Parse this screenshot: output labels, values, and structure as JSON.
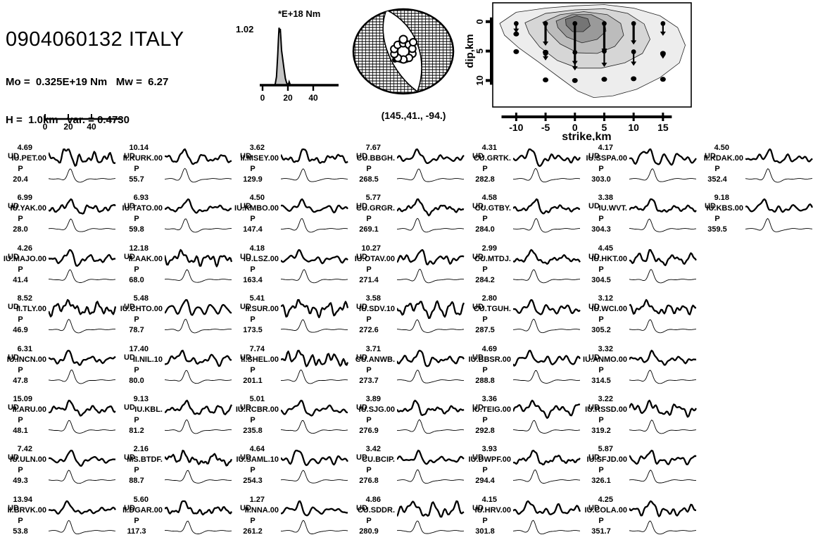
{
  "header": {
    "title": "0904060132 ITALY",
    "moment_line": "Mo =  0.325E+19 Nm   Mw =  6.27",
    "depth_line": "H =  1.0km   var. = 0.4730"
  },
  "colors": {
    "ink": "#000000",
    "stf_fill": "#c4c4c4",
    "contour_shades": [
      "#ededed",
      "#d6d6d6",
      "#bcbcbc",
      "#9a9a9a",
      "#757575"
    ]
  },
  "chart_data": {
    "type": "seismic-moment-tensor-inversion-figure",
    "source_time_function": {
      "type": "area",
      "unit_label": "*E+18 Nm",
      "peak_label": "1.02",
      "peak_value": 1.02,
      "x_ticks": [
        0,
        20,
        40
      ],
      "t": [
        0,
        9,
        10,
        11,
        12,
        12.5,
        13,
        13.5,
        14,
        14.5,
        15,
        16,
        17,
        18,
        19,
        20,
        20.5,
        21,
        21.5,
        22,
        50
      ],
      "moment_rate": [
        0,
        0,
        0.02,
        0.15,
        0.55,
        0.8,
        1.02,
        0.97,
        1.0,
        0.82,
        0.62,
        0.45,
        0.28,
        0.12,
        0.04,
        0.01,
        0.02,
        0.06,
        0.03,
        0,
        0
      ]
    },
    "focal_mechanism": {
      "label": "(145.,41., -94.)",
      "strike": 145,
      "dip": 41,
      "rake": -94
    },
    "slip_distribution": {
      "xlabel": "strike,km",
      "ylabel": "dip,km",
      "x_ticks": [
        -10,
        -5,
        0,
        5,
        10,
        15
      ],
      "y_ticks": [
        0,
        5,
        10
      ],
      "contours": [
        [
          [
            -12.8,
            0.3
          ],
          [
            -10,
            -1.6
          ],
          [
            -5,
            -2.3
          ],
          [
            0,
            -2.7
          ],
          [
            5,
            -2.9
          ],
          [
            10,
            -2.3
          ],
          [
            14.5,
            -1
          ],
          [
            17.5,
            1
          ],
          [
            18.8,
            4
          ],
          [
            17.8,
            7
          ],
          [
            14.5,
            9.5
          ],
          [
            10.5,
            11.5
          ],
          [
            6.5,
            12.6
          ],
          [
            3.2,
            12.9
          ],
          [
            0.5,
            11.8
          ],
          [
            -2.5,
            9.6
          ],
          [
            -6,
            7
          ],
          [
            -9.5,
            4.5
          ],
          [
            -12,
            2.3
          ]
        ],
        [
          [
            -8.5,
            0.2
          ],
          [
            -5,
            -1.4
          ],
          [
            0,
            -2
          ],
          [
            5,
            -2.2
          ],
          [
            9,
            -1.4
          ],
          [
            11.8,
            0.4
          ],
          [
            12.8,
            3
          ],
          [
            11.5,
            5.4
          ],
          [
            8.5,
            7
          ],
          [
            4.5,
            7.9
          ],
          [
            0.5,
            7.9
          ],
          [
            -3,
            6.6
          ],
          [
            -6,
            4.3
          ],
          [
            -7.8,
            2
          ]
        ],
        [
          [
            -5.5,
            0.1
          ],
          [
            -2.5,
            -1.2
          ],
          [
            1.5,
            -1.7
          ],
          [
            5.5,
            -1.2
          ],
          [
            7.8,
            0.3
          ],
          [
            8.3,
            2.3
          ],
          [
            6.8,
            4.2
          ],
          [
            3.8,
            5.4
          ],
          [
            0.5,
            5.3
          ],
          [
            -2.5,
            3.8
          ],
          [
            -4.5,
            1.8
          ]
        ],
        [
          [
            -3.2,
            -0.1
          ],
          [
            -0.5,
            -1.2
          ],
          [
            2.8,
            -1.2
          ],
          [
            5,
            -0.1
          ],
          [
            5.3,
            1.6
          ],
          [
            3.8,
            3
          ],
          [
            1.2,
            3.6
          ],
          [
            -1.4,
            2.6
          ],
          [
            -2.9,
            1
          ]
        ],
        [
          [
            -1.6,
            -0.4
          ],
          [
            0.3,
            -1
          ],
          [
            2.2,
            -0.5
          ],
          [
            2.6,
            0.7
          ],
          [
            1.4,
            1.7
          ],
          [
            -0.4,
            1.7
          ],
          [
            -1.5,
            0.6
          ]
        ]
      ],
      "arrows": [
        [
          -10,
          0.2,
          1.9
        ],
        [
          -5,
          0.2,
          4.1
        ],
        [
          0,
          0.2,
          7.4
        ],
        [
          5,
          0.2,
          5.3
        ],
        [
          10,
          0.2,
          3.9
        ],
        [
          15,
          0.2,
          2.4
        ],
        [
          -5,
          5.3,
          6.6
        ],
        [
          0,
          5.1,
          8.3
        ],
        [
          5,
          4.9,
          7.7
        ],
        [
          10,
          5.0,
          7.5
        ],
        [
          15,
          5.3,
          6.3
        ]
      ],
      "dots": [
        [
          -10,
          2.1
        ],
        [
          -10,
          5.1
        ],
        [
          -5,
          5.2
        ],
        [
          -5,
          9.9
        ],
        [
          0,
          10
        ],
        [
          5,
          9.8
        ],
        [
          10,
          9.7
        ],
        [
          15,
          5.4
        ],
        [
          15,
          9.8
        ]
      ]
    },
    "waveform_time_scale": {
      "ticks": [
        0,
        20,
        40
      ]
    },
    "stations": {
      "component_label": "UD",
      "phase_label": "P",
      "columns": [
        [
          {
            "amp": "4.69",
            "name": "IU.PET.00",
            "az": "20.4"
          },
          {
            "amp": "6.99",
            "name": "IU.YAK.00",
            "az": "28.0"
          },
          {
            "amp": "4.26",
            "name": "IU.MAJO.00",
            "az": "41.4"
          },
          {
            "amp": "8.52",
            "name": "II.TLY.00",
            "az": "46.9"
          },
          {
            "amp": "6.31",
            "name": "IU.INCN.00",
            "az": "47.8"
          },
          {
            "amp": "15.09",
            "name": "II.ARU.00",
            "az": "48.1"
          },
          {
            "amp": "7.42",
            "name": "IU.ULN.00",
            "az": "49.3"
          },
          {
            "amp": "13.94",
            "name": "II.BRVK.00",
            "az": "53.8"
          }
        ],
        [
          {
            "amp": "10.14",
            "name": "II.KURK.00",
            "az": "55.7"
          },
          {
            "amp": "6.93",
            "name": "IU.TATO.00",
            "az": "59.8"
          },
          {
            "amp": "12.18",
            "name": "II.AAK.00",
            "az": "68.0"
          },
          {
            "amp": "5.48",
            "name": "IU.CHTO.00",
            "az": "78.7"
          },
          {
            "amp": "17.40",
            "name": "II.NIL.10",
            "az": "80.0"
          },
          {
            "amp": "9.13",
            "name": "IU.KBL.",
            "az": "81.2"
          },
          {
            "amp": "2.16",
            "name": "MS.BTDF.",
            "az": "88.7"
          },
          {
            "amp": "5.60",
            "name": "II.DGAR.00",
            "az": "117.3"
          }
        ],
        [
          {
            "amp": "3.62",
            "name": "II.MSEY.00",
            "az": "129.9"
          },
          {
            "amp": "4.50",
            "name": "IU.KMBO.00",
            "az": "147.4"
          },
          {
            "amp": "4.18",
            "name": "IU.LSZ.00",
            "az": "163.4"
          },
          {
            "amp": "5.41",
            "name": "II.SUR.00",
            "az": "173.5"
          },
          {
            "amp": "7.74",
            "name": "II.SHEL.00",
            "az": "201.1"
          },
          {
            "amp": "5.01",
            "name": "IU.RCBR.00",
            "az": "235.8"
          },
          {
            "amp": "4.64",
            "name": "IU.SAML.10",
            "az": "254.3"
          },
          {
            "amp": "1.27",
            "name": "II.NNA.00",
            "az": "261.2"
          }
        ],
        [
          {
            "amp": "7.67",
            "name": "CU.BBGH.",
            "az": "268.5"
          },
          {
            "amp": "5.77",
            "name": "CU.GRGR.",
            "az": "269.1"
          },
          {
            "amp": "10.27",
            "name": "IU.OTAV.00",
            "az": "271.4"
          },
          {
            "amp": "3.58",
            "name": "IU.SDV.10",
            "az": "272.6"
          },
          {
            "amp": "3.71",
            "name": "CU.ANWB.",
            "az": "273.7"
          },
          {
            "amp": "3.89",
            "name": "IU.SJG.00",
            "az": "276.9"
          },
          {
            "amp": "3.42",
            "name": "CU.BCIP.",
            "az": "276.8"
          },
          {
            "amp": "4.86",
            "name": "CU.SDDR.",
            "az": "280.9"
          }
        ],
        [
          {
            "amp": "4.31",
            "name": "CU.GRTK.",
            "az": "282.8"
          },
          {
            "amp": "4.58",
            "name": "CU.GTBY.",
            "az": "284.0"
          },
          {
            "amp": "2.99",
            "name": "CU.MTDJ.",
            "az": "284.2"
          },
          {
            "amp": "2.80",
            "name": "CU.TGUH.",
            "az": "287.5"
          },
          {
            "amp": "4.69",
            "name": "IU.BBSR.00",
            "az": "288.8"
          },
          {
            "amp": "3.36",
            "name": "IU.TEIG.00",
            "az": "292.8"
          },
          {
            "amp": "3.93",
            "name": "IU.DWPF.00",
            "az": "294.4"
          },
          {
            "amp": "4.15",
            "name": "IU.HRV.00",
            "az": "301.8"
          }
        ],
        [
          {
            "amp": "4.17",
            "name": "IU.SSPA.00",
            "az": "303.0"
          },
          {
            "amp": "3.38",
            "name": "IU.WVT.",
            "az": "304.3"
          },
          {
            "amp": "4.45",
            "name": "IU.HKT.00",
            "az": "304.5"
          },
          {
            "amp": "3.12",
            "name": "IU.WCI.00",
            "az": "305.2"
          },
          {
            "amp": "3.32",
            "name": "IU.ANMO.00",
            "az": "314.5"
          },
          {
            "amp": "3.22",
            "name": "IU.RSSD.00",
            "az": "319.2"
          },
          {
            "amp": "5.87",
            "name": "IU.SFJD.00",
            "az": "326.1"
          },
          {
            "amp": "4.25",
            "name": "IU.COLA.00",
            "az": "351.7"
          }
        ],
        [
          {
            "amp": "4.50",
            "name": "II.KDAK.00",
            "az": "352.4"
          },
          {
            "amp": "9.18",
            "name": "IU.KBS.00",
            "az": "359.5"
          }
        ]
      ]
    }
  }
}
